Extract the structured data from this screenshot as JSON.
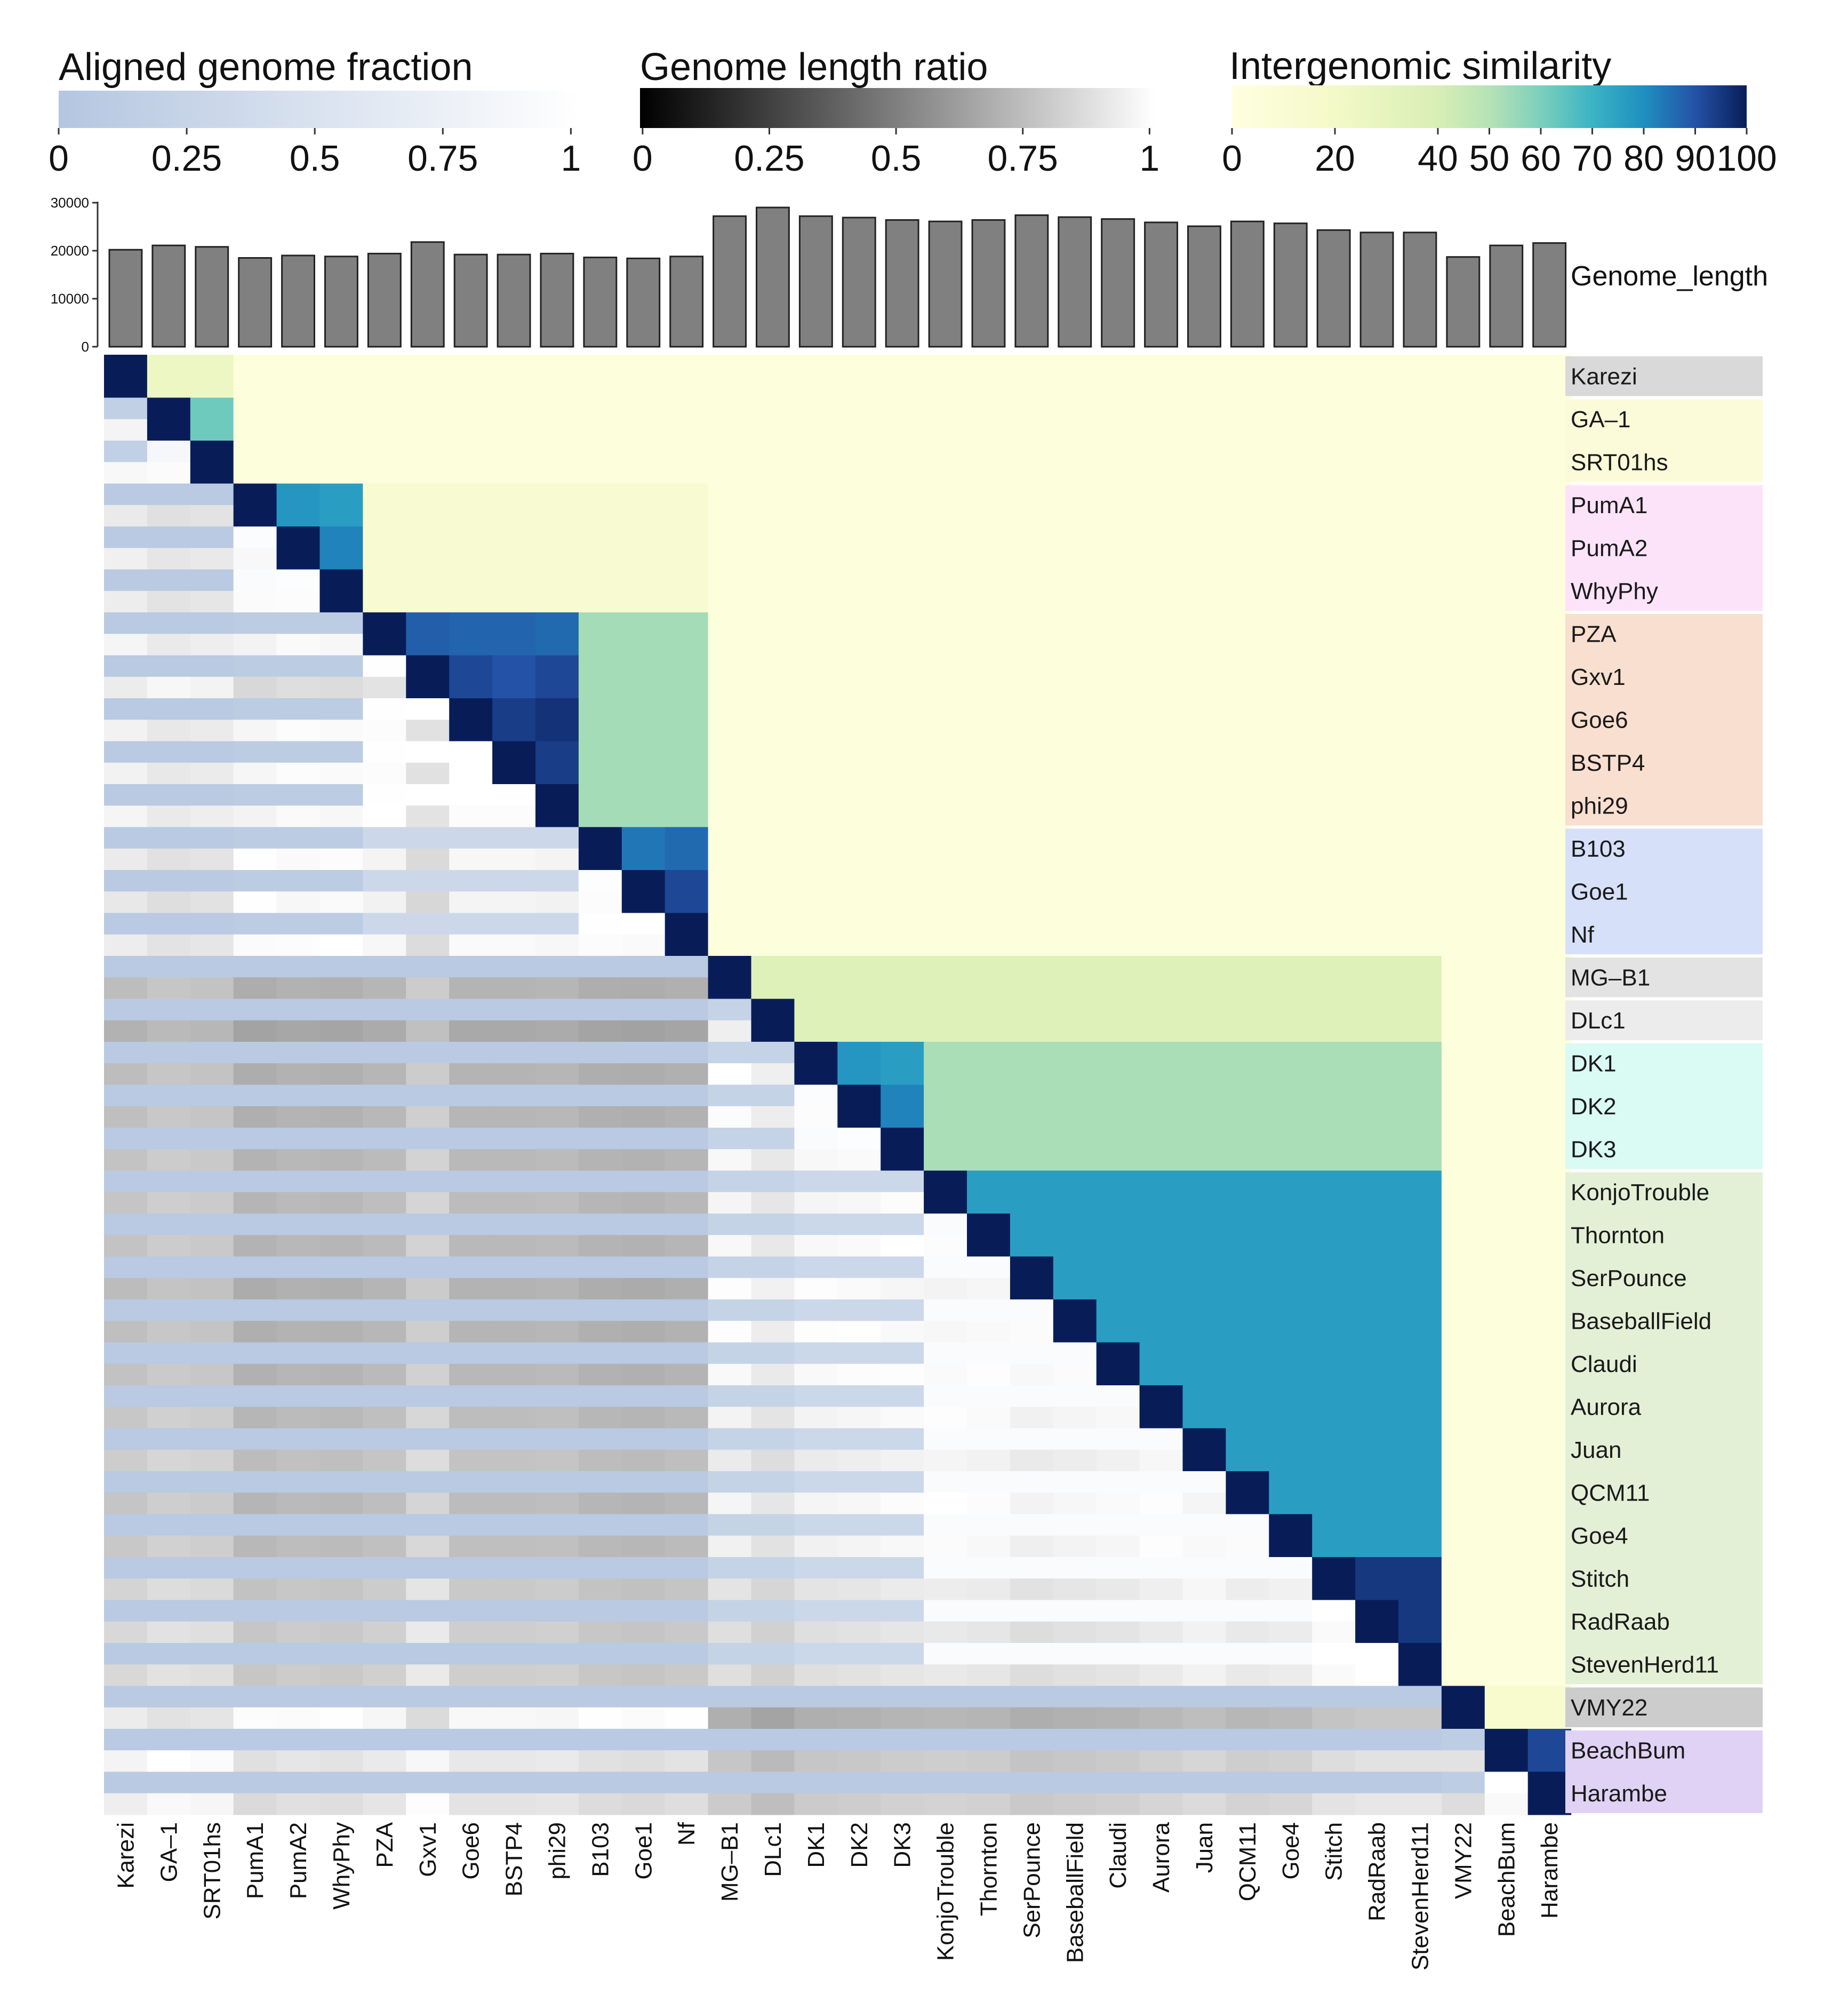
{
  "chart_data": {
    "type": "heatmap",
    "title": "",
    "phages": [
      "Karezi",
      "GA–1",
      "SRT01hs",
      "PumA1",
      "PumA2",
      "WhyPhy",
      "PZA",
      "Gxv1",
      "Goe6",
      "BSTP4",
      "phi29",
      "B103",
      "Goe1",
      "Nf",
      "MG–B1",
      "DLc1",
      "DK1",
      "DK2",
      "DK3",
      "KonjoTrouble",
      "Thornton",
      "SerPounce",
      "BaseballField",
      "Claudi",
      "Aurora",
      "Juan",
      "QCM11",
      "Goe4",
      "Stitch",
      "RadRaab",
      "StevenHerd11",
      "VMY22",
      "BeachBum",
      "Harambe"
    ],
    "genome_length": {
      "label": "Genome_length",
      "axis_ticks": [
        "0",
        "10000",
        "20000",
        "30000"
      ],
      "ylim": [
        0,
        30000
      ],
      "values": [
        20200,
        21100,
        20800,
        18500,
        19000,
        18800,
        19400,
        21800,
        19200,
        19200,
        19400,
        18600,
        18400,
        18800,
        27200,
        29000,
        27200,
        26900,
        26400,
        26100,
        26400,
        27400,
        27000,
        26600,
        25900,
        25100,
        26100,
        25700,
        24300,
        23800,
        23800,
        18700,
        21100,
        21600
      ]
    },
    "legends": {
      "aligned_fraction": {
        "title": "Aligned genome fraction",
        "ticks": [
          "0",
          "0.25",
          "0.5",
          "0.75",
          "1"
        ],
        "color_low": "#b4c6e0",
        "color_high": "#ffffff"
      },
      "length_ratio": {
        "title": "Genome length ratio",
        "ticks": [
          "0",
          "0.25",
          "0.5",
          "0.75",
          "1"
        ],
        "color_low": "#000000",
        "color_high": "#ffffff"
      },
      "similarity": {
        "title": "Intergenomic similarity",
        "ticks": [
          "0",
          "20",
          "40",
          "50",
          "60",
          "70",
          "80",
          "90",
          "100"
        ],
        "tick_values": [
          0,
          20,
          40,
          50,
          60,
          70,
          80,
          90,
          100
        ]
      }
    },
    "clusters": [
      {
        "members": [
          "Karezi"
        ],
        "color": "#d9d9d9"
      },
      {
        "members": [
          "GA–1",
          "SRT01hs"
        ],
        "color": "#fbfbd9"
      },
      {
        "members": [
          "PumA1",
          "PumA2",
          "WhyPhy"
        ],
        "color": "#fde3fa"
      },
      {
        "members": [
          "PZA",
          "Gxv1",
          "Goe6",
          "BSTP4",
          "phi29"
        ],
        "color": "#f9dfcf"
      },
      {
        "members": [
          "B103",
          "Goe1",
          "Nf"
        ],
        "color": "#d6e0f8"
      },
      {
        "members": [
          "MG–B1"
        ],
        "color": "#e3e3e3"
      },
      {
        "members": [
          "DLc1"
        ],
        "color": "#ececec"
      },
      {
        "members": [
          "DK1",
          "DK2",
          "DK3"
        ],
        "color": "#dafaf4"
      },
      {
        "members": [
          "KonjoTrouble",
          "Thornton",
          "SerPounce",
          "BaseballField",
          "Claudi",
          "Aurora",
          "Juan",
          "QCM11",
          "Goe4",
          "Stitch",
          "RadRaab",
          "StevenHerd11"
        ],
        "color": "#e4f0d6"
      },
      {
        "members": [
          "VMY22"
        ],
        "color": "#cccccc"
      },
      {
        "members": [
          "BeachBum",
          "Harambe"
        ],
        "color": "#e0d2f4"
      }
    ],
    "similarity_pairs": [
      {
        "a": "GA–1",
        "b": "Karezi",
        "value": 25
      },
      {
        "a": "SRT01hs",
        "b": "Karezi",
        "value": 25
      },
      {
        "a": "SRT01hs",
        "b": "GA–1",
        "value": 62
      },
      {
        "a": "PumA2",
        "b": "PumA1",
        "value": 78
      },
      {
        "a": "WhyPhy",
        "b": "PumA1",
        "value": 76
      },
      {
        "a": "WhyPhy",
        "b": "PumA2",
        "value": 82
      },
      {
        "a": "Gxv1",
        "b": "PZA",
        "value": 88
      },
      {
        "a": "Goe6",
        "b": "PZA",
        "value": 87
      },
      {
        "a": "BSTP4",
        "b": "PZA",
        "value": 87
      },
      {
        "a": "phi29",
        "b": "PZA",
        "value": 86
      },
      {
        "a": "Goe6",
        "b": "Gxv1",
        "value": 92
      },
      {
        "a": "BSTP4",
        "b": "Gxv1",
        "value": 90
      },
      {
        "a": "phi29",
        "b": "Gxv1",
        "value": 92
      },
      {
        "a": "BSTP4",
        "b": "Goe6",
        "value": 94
      },
      {
        "a": "phi29",
        "b": "Goe6",
        "value": 96
      },
      {
        "a": "phi29",
        "b": "BSTP4",
        "value": 94
      },
      {
        "a": "Goe1",
        "b": "B103",
        "value": 84
      },
      {
        "a": "Nf",
        "b": "B103",
        "value": 86
      },
      {
        "a": "Nf",
        "b": "Goe1",
        "value": 92
      },
      {
        "a": "DK2",
        "b": "DK1",
        "value": 78
      },
      {
        "a": "DK3",
        "b": "DK1",
        "value": 76
      },
      {
        "a": "DK3",
        "b": "DK2",
        "value": 82
      },
      {
        "a": "BeachBum",
        "b": "VMY22",
        "value": 15
      },
      {
        "a": "Harambe",
        "b": "VMY22",
        "value": 15
      },
      {
        "a": "Harambe",
        "b": "BeachBum",
        "value": 92
      }
    ],
    "notes_block_values": {}
  }
}
